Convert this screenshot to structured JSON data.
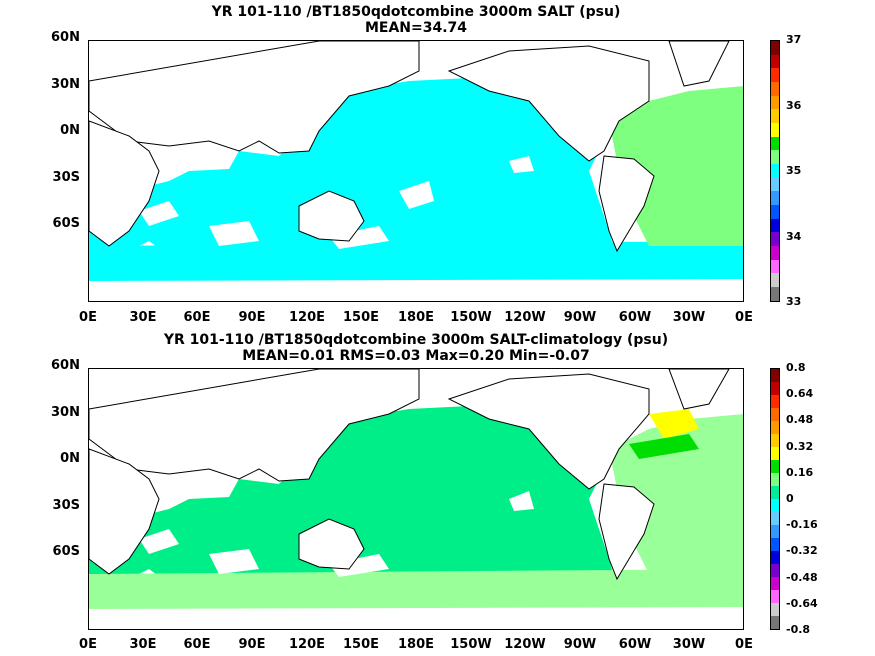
{
  "panels": [
    {
      "title_line1": "YR 101-110 /BT1850qdotcombine 3000m SALT (psu)",
      "title_line2": "MEAN=34.74",
      "colorbar_labels": [
        "37",
        "36",
        "35",
        "34",
        "33"
      ],
      "colorbar_colors": [
        "#7f0000",
        "#c00000",
        "#ff2a00",
        "#ff6a00",
        "#ff9900",
        "#ffcc00",
        "#ffff00",
        "#00dd00",
        "#7fff7f",
        "#00ffff",
        "#66ccff",
        "#3399ff",
        "#0055ff",
        "#0000dd",
        "#7700cc",
        "#cc00cc",
        "#ff66ff",
        "#cccccc",
        "#777777"
      ],
      "ocean_fill": "#00ffff",
      "atlantic_fill": "#7fff7f"
    },
    {
      "title_line1": "YR 101-110 /BT1850qdotcombine 3000m SALT-climatology (psu)",
      "title_line2": "MEAN=0.01   RMS=0.03   Max=0.20   Min=-0.07",
      "colorbar_labels": [
        "0.8",
        "0.64",
        "0.48",
        "0.32",
        "0.16",
        "0",
        "-0.16",
        "-0.32",
        "-0.48",
        "-0.64",
        "-0.8"
      ],
      "colorbar_colors": [
        "#7f0000",
        "#c00000",
        "#ff2a00",
        "#ff6a00",
        "#ff9900",
        "#ffcc00",
        "#ffff00",
        "#00dd00",
        "#7fff7f",
        "#00ee99",
        "#00ffff",
        "#66ccff",
        "#3399ff",
        "#0055ff",
        "#0000dd",
        "#7700cc",
        "#cc00cc",
        "#ff66ff",
        "#cccccc",
        "#777777"
      ],
      "ocean_fill": "#00ee88",
      "atlantic_fill": "#99ff99"
    }
  ],
  "y_axis_labels": [
    "60N",
    "30N",
    "0N",
    "30S",
    "60S"
  ],
  "x_axis_labels": [
    "0E",
    "30E",
    "60E",
    "90E",
    "120E",
    "150E",
    "180E",
    "150W",
    "120W",
    "90W",
    "60W",
    "30W",
    "0E"
  ]
}
